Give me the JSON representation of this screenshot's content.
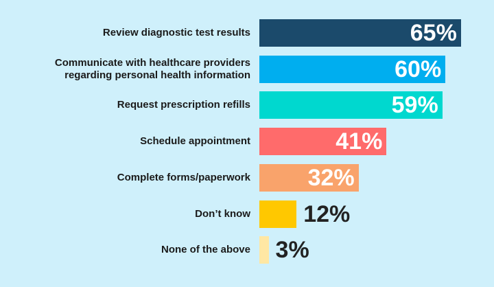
{
  "chart_data": {
    "type": "bar",
    "orientation": "horizontal",
    "categories": [
      "Review diagnostic test results",
      "Communicate with healthcare providers regarding personal health information",
      "Request prescription refills",
      "Schedule appointment",
      "Complete forms/paperwork",
      "Don’t know",
      "None of the above"
    ],
    "values": [
      65,
      60,
      59,
      41,
      32,
      12,
      3
    ],
    "value_labels": [
      "65%",
      "60%",
      "59%",
      "41%",
      "32%",
      "12%",
      "3%"
    ],
    "colors": [
      "#1b4a6b",
      "#00aeef",
      "#00d8cf",
      "#ff6b6b",
      "#f9a36b",
      "#ffc800",
      "#ffe7a3"
    ]
  }
}
